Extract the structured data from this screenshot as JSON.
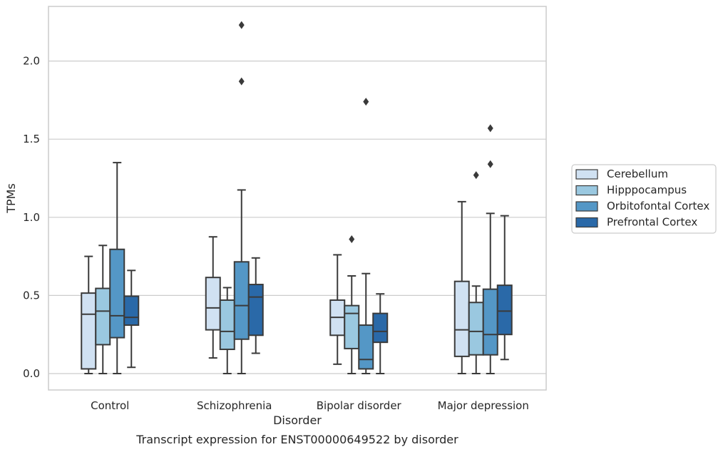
{
  "chart_data": {
    "type": "box",
    "xlabel": "Disorder",
    "ylabel": "TPMs",
    "caption": "Transcript expression for ENST00000649522 by disorder",
    "ylim": [
      -0.11,
      2.35
    ],
    "yticks": [
      "0.0",
      "0.5",
      "1.0",
      "1.5",
      "2.0"
    ],
    "grid": "horizontal",
    "legend_position": "right",
    "categories": [
      "Control",
      "Schizophrenia",
      "Bipolar disorder",
      "Major depression"
    ],
    "series": [
      {
        "name": "Cerebellum",
        "color": "#d0e1f2",
        "boxes": [
          {
            "whislo": 0.0,
            "q1": 0.03,
            "med": 0.38,
            "q3": 0.515,
            "whishi": 0.75,
            "fliers": []
          },
          {
            "whislo": 0.1,
            "q1": 0.28,
            "med": 0.42,
            "q3": 0.615,
            "whishi": 0.875,
            "fliers": []
          },
          {
            "whislo": 0.06,
            "q1": 0.245,
            "med": 0.36,
            "q3": 0.47,
            "whishi": 0.76,
            "fliers": []
          },
          {
            "whislo": 0.0,
            "q1": 0.11,
            "med": 0.28,
            "q3": 0.59,
            "whishi": 1.1,
            "fliers": []
          }
        ]
      },
      {
        "name": "Hipppocampus",
        "color": "#9ac8e0",
        "boxes": [
          {
            "whislo": 0.0,
            "q1": 0.185,
            "med": 0.4,
            "q3": 0.545,
            "whishi": 0.82,
            "fliers": []
          },
          {
            "whislo": 0.0,
            "q1": 0.155,
            "med": 0.27,
            "q3": 0.47,
            "whishi": 0.55,
            "fliers": []
          },
          {
            "whislo": 0.0,
            "q1": 0.16,
            "med": 0.385,
            "q3": 0.435,
            "whishi": 0.625,
            "fliers": [
              0.86
            ]
          },
          {
            "whislo": 0.0,
            "q1": 0.12,
            "med": 0.27,
            "q3": 0.455,
            "whishi": 0.56,
            "fliers": [
              1.27
            ]
          }
        ]
      },
      {
        "name": "Orbitofontal Cortex",
        "color": "#5497c6",
        "boxes": [
          {
            "whislo": 0.0,
            "q1": 0.23,
            "med": 0.37,
            "q3": 0.795,
            "whishi": 1.35,
            "fliers": []
          },
          {
            "whislo": 0.0,
            "q1": 0.22,
            "med": 0.435,
            "q3": 0.715,
            "whishi": 1.175,
            "fliers": [
              1.87,
              2.23
            ]
          },
          {
            "whislo": 0.0,
            "q1": 0.03,
            "med": 0.09,
            "q3": 0.31,
            "whishi": 0.64,
            "fliers": [
              1.74
            ]
          },
          {
            "whislo": 0.0,
            "q1": 0.12,
            "med": 0.25,
            "q3": 0.54,
            "whishi": 1.025,
            "fliers": [
              1.34,
              1.57
            ]
          }
        ]
      },
      {
        "name": "Prefrontal Cortex",
        "color": "#2a69a8",
        "boxes": [
          {
            "whislo": 0.04,
            "q1": 0.31,
            "med": 0.36,
            "q3": 0.495,
            "whishi": 0.66,
            "fliers": []
          },
          {
            "whislo": 0.13,
            "q1": 0.245,
            "med": 0.49,
            "q3": 0.57,
            "whishi": 0.74,
            "fliers": []
          },
          {
            "whislo": 0.0,
            "q1": 0.2,
            "med": 0.27,
            "q3": 0.385,
            "whishi": 0.51,
            "fliers": []
          },
          {
            "whislo": 0.09,
            "q1": 0.25,
            "med": 0.4,
            "q3": 0.565,
            "whishi": 1.01,
            "fliers": []
          }
        ]
      }
    ]
  }
}
